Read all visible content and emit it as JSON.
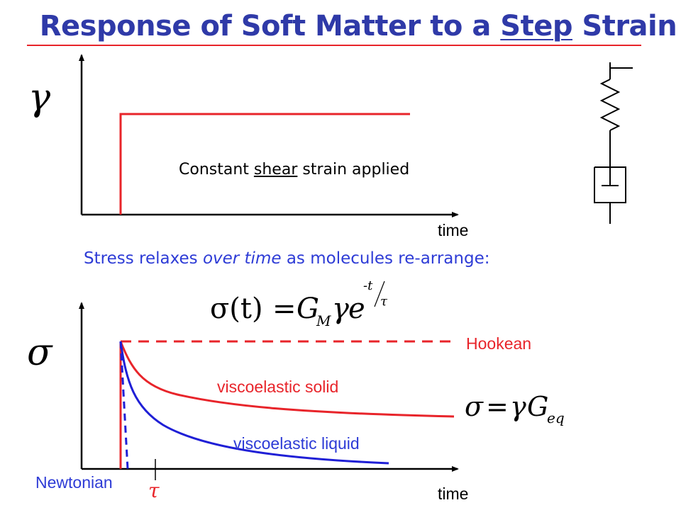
{
  "title": {
    "prefix": "Response of Soft Matter to a ",
    "underlined": "Step",
    "suffix": " Strain"
  },
  "top_plot": {
    "y_symbol": "γ",
    "x_label": "time",
    "annotation_prefix": "Constant ",
    "annotation_underlined": "shear",
    "annotation_suffix": " strain applied"
  },
  "relax_statement": {
    "prefix": "Stress relaxes ",
    "italic": "over time",
    "suffix": " as molecules re-arrange:"
  },
  "equations": {
    "maxwell": {
      "lhs": "σ(t)",
      "equals": "=",
      "G": "G",
      "G_sub": "M",
      "gamma": "γ",
      "e": "e",
      "exp_num": "-t",
      "exp_den": "τ"
    },
    "equilibrium": {
      "lhs": "σ",
      "equals": "=",
      "gamma": "γ",
      "G": "G",
      "G_sub": "eq"
    }
  },
  "bottom_plot": {
    "y_symbol": "σ",
    "x_label": "time",
    "tau_symbol": "τ",
    "curves": {
      "hookean": "Hookean",
      "viscoelastic_solid": "viscoelastic solid",
      "viscoelastic_liquid": "viscoelastic liquid",
      "newtonian": "Newtonian"
    }
  },
  "colors": {
    "title": "#2f3aa8",
    "rule": "#e8242a",
    "red_curve": "#e8242a",
    "blue_curve": "#1f1fd6",
    "label_red": "#e8242a",
    "label_blue": "#2d3bd6",
    "axis": "#000000"
  }
}
